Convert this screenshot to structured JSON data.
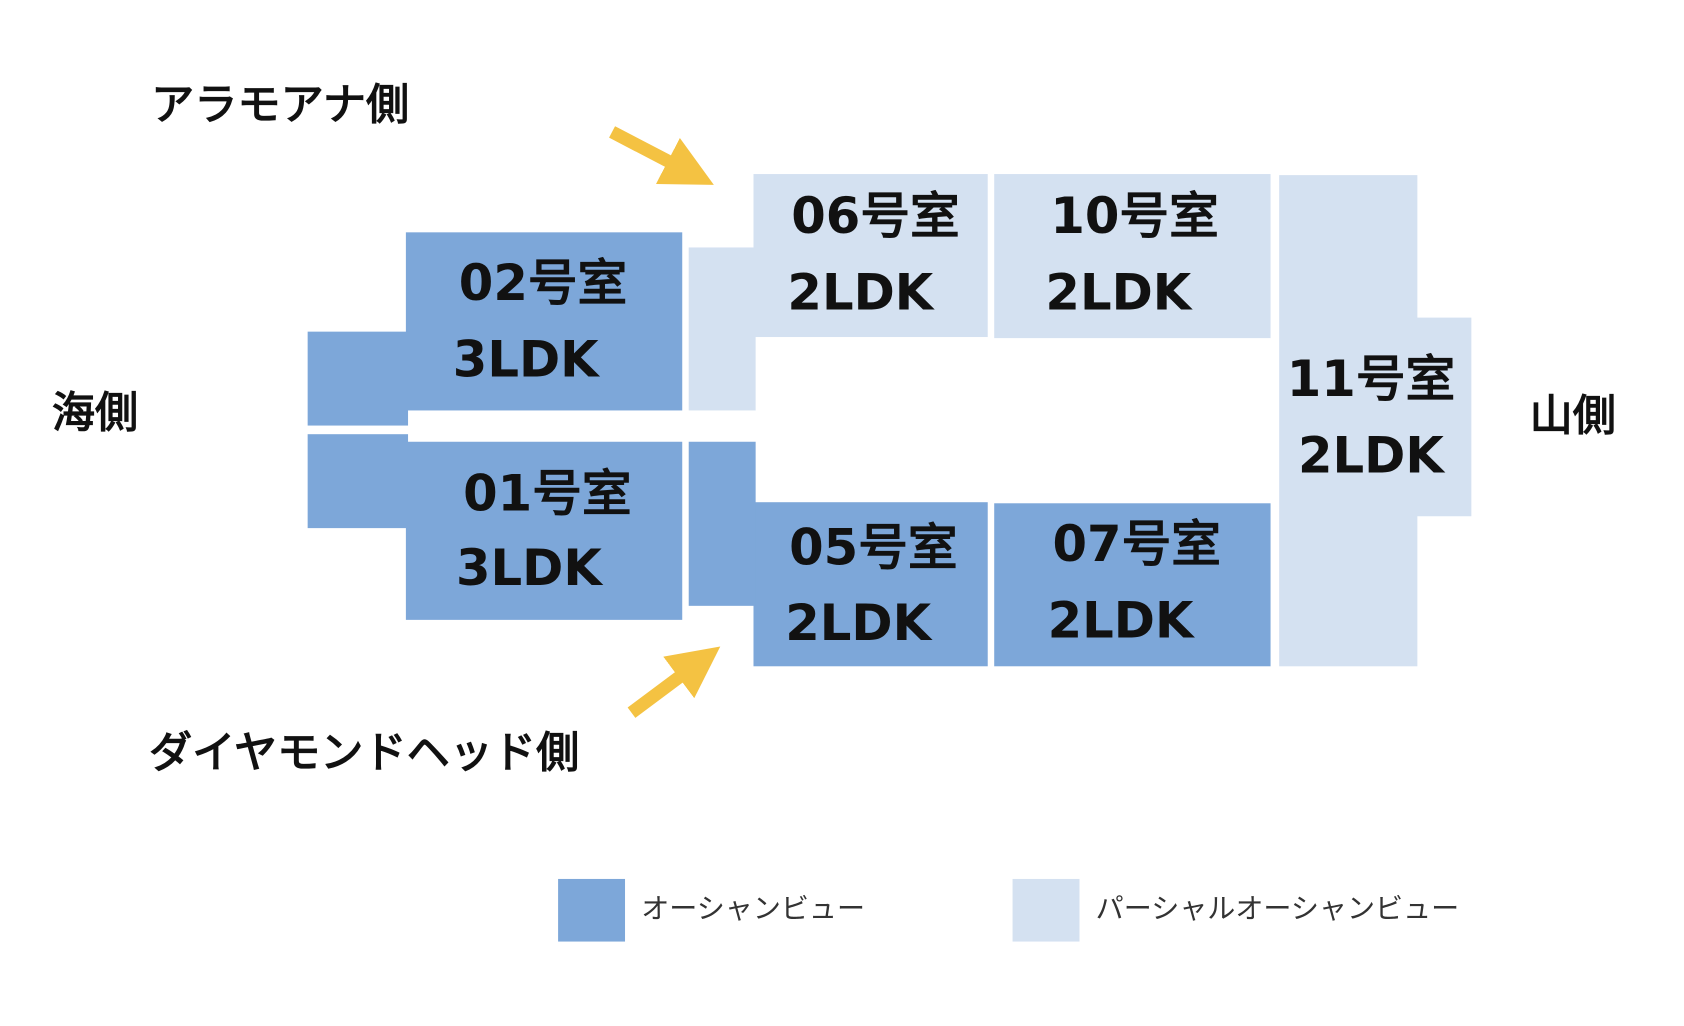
{
  "labels": {
    "alamoana": "アラモアナ側",
    "sea": "海側",
    "mountain": "山側",
    "diamondhead": "ダイヤモンドヘッド側"
  },
  "rooms": [
    {
      "name": "02号室",
      "type": "3LDK"
    },
    {
      "name": "01号室",
      "type": "3LDK"
    },
    {
      "name": "06号室",
      "type": "2LDK"
    },
    {
      "name": "10号室",
      "type": "2LDK"
    },
    {
      "name": "05号室",
      "type": "2LDK"
    },
    {
      "name": "07号室",
      "type": "2LDK"
    },
    {
      "name": "11号室",
      "type": "2LDK"
    }
  ],
  "legend": [
    "オーシャンビュー",
    "パーシャルオーシャンビュー"
  ]
}
